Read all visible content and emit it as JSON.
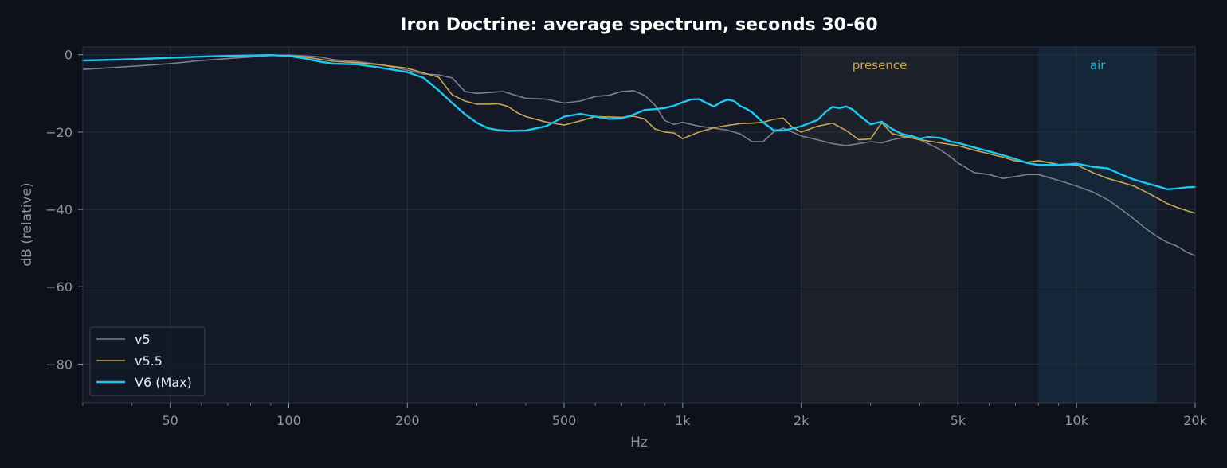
{
  "chart_data": {
    "type": "line",
    "title": "Iron Doctrine: average spectrum, seconds 30-60",
    "xlabel": "Hz",
    "ylabel": "dB (relative)",
    "xscale": "log",
    "xlim": [
      30,
      20000
    ],
    "ylim": [
      -90,
      2
    ],
    "xticks": [
      {
        "value": 50,
        "label": "50"
      },
      {
        "value": 100,
        "label": "100"
      },
      {
        "value": 200,
        "label": "200"
      },
      {
        "value": 500,
        "label": "500"
      },
      {
        "value": 1000,
        "label": "1k"
      },
      {
        "value": 2000,
        "label": "2k"
      },
      {
        "value": 5000,
        "label": "5k"
      },
      {
        "value": 10000,
        "label": "10k"
      },
      {
        "value": 20000,
        "label": "20k"
      }
    ],
    "yticks": [
      {
        "value": 0,
        "label": "0"
      },
      {
        "value": -20,
        "label": "−20"
      },
      {
        "value": -40,
        "label": "−40"
      },
      {
        "value": -60,
        "label": "−60"
      },
      {
        "value": -80,
        "label": "−80"
      }
    ],
    "grid": true,
    "legend_position": "bottom-left",
    "bands": [
      {
        "label": "presence",
        "x0": 2000,
        "x1": 5000,
        "color": "#c9a64f"
      },
      {
        "label": "air",
        "x0": 8000,
        "x1": 16000,
        "color": "#1fb6d9"
      }
    ],
    "series": [
      {
        "name": "v5",
        "color": "#7a8090",
        "width": 1.6,
        "x": [
          30,
          40,
          50,
          60,
          70,
          80,
          90,
          100,
          110,
          120,
          130,
          150,
          170,
          200,
          220,
          240,
          260,
          280,
          300,
          350,
          400,
          450,
          500,
          550,
          600,
          650,
          700,
          750,
          800,
          850,
          900,
          950,
          1000,
          1100,
          1200,
          1300,
          1400,
          1500,
          1600,
          1700,
          1800,
          1900,
          2000,
          2200,
          2400,
          2600,
          2800,
          3000,
          3200,
          3400,
          3600,
          3800,
          4000,
          4200,
          4500,
          4800,
          5000,
          5500,
          6000,
          6500,
          7000,
          7500,
          8000,
          9000,
          10000,
          11000,
          12000,
          13000,
          14000,
          15000,
          16000,
          17000,
          18000,
          19000,
          20000
        ],
        "y": [
          -3.8,
          -3,
          -2.3,
          -1.5,
          -1,
          -0.6,
          -0.2,
          -0.1,
          -0.3,
          -0.6,
          -1.3,
          -1.8,
          -2.5,
          -4,
          -5,
          -5.2,
          -6,
          -9.5,
          -10,
          -9.5,
          -11.3,
          -11.5,
          -12.5,
          -12,
          -10.8,
          -10.5,
          -9.5,
          -9.3,
          -10.5,
          -13,
          -17,
          -18,
          -17.5,
          -18.5,
          -19,
          -19.5,
          -20.5,
          -22.5,
          -22.5,
          -20,
          -19,
          -20,
          -21,
          -22,
          -23,
          -23.5,
          -23,
          -22.5,
          -22.8,
          -22,
          -21.5,
          -21,
          -22,
          -23,
          -24.5,
          -26.5,
          -28,
          -30.5,
          -31,
          -32,
          -31.5,
          -31,
          -31,
          -32.5,
          -34,
          -35.5,
          -37.5,
          -40,
          -42.5,
          -45,
          -47,
          -48.5,
          -49.5,
          -51,
          -52
        ]
      },
      {
        "name": "v5.5",
        "color": "#c9a64f",
        "width": 1.6,
        "x": [
          30,
          40,
          50,
          60,
          70,
          80,
          90,
          100,
          110,
          120,
          130,
          150,
          170,
          200,
          220,
          240,
          260,
          280,
          300,
          320,
          340,
          360,
          380,
          400,
          450,
          500,
          550,
          600,
          650,
          700,
          750,
          800,
          850,
          900,
          950,
          1000,
          1100,
          1200,
          1300,
          1400,
          1500,
          1600,
          1700,
          1800,
          1900,
          2000,
          2200,
          2400,
          2600,
          2800,
          3000,
          3200,
          3400,
          3600,
          3800,
          4000,
          4500,
          5000,
          5500,
          6000,
          6500,
          7000,
          7500,
          8000,
          9000,
          10000,
          11000,
          12000,
          13000,
          14000,
          15000,
          16000,
          17000,
          18000,
          19000,
          20000
        ],
        "y": [
          -1.5,
          -1.2,
          -0.8,
          -0.5,
          -0.3,
          -0.2,
          -0.1,
          -0.2,
          -0.6,
          -1.2,
          -1.7,
          -2.1,
          -2.6,
          -3.5,
          -4.7,
          -5.8,
          -10.4,
          -12,
          -12.8,
          -12.8,
          -12.7,
          -13.4,
          -15,
          -16,
          -17.4,
          -18.2,
          -17.1,
          -16,
          -16.1,
          -16.2,
          -15.9,
          -16.6,
          -19.2,
          -20,
          -20.2,
          -21.7,
          -20,
          -18.9,
          -18.3,
          -17.8,
          -17.7,
          -17.5,
          -16.7,
          -16.4,
          -18.8,
          -20,
          -18.5,
          -17.7,
          -19.6,
          -22,
          -21.8,
          -17.6,
          -20.4,
          -21,
          -21.5,
          -22,
          -22.8,
          -23.5,
          -24.7,
          -25.6,
          -26.5,
          -27.5,
          -27.8,
          -27.4,
          -28.4,
          -28.5,
          -30.5,
          -32,
          -33,
          -34,
          -35.5,
          -37,
          -38.5,
          -39.5,
          -40.3,
          -41
        ]
      },
      {
        "name": "V6 (Max)",
        "color": "#1ec8f0",
        "width": 2.4,
        "x": [
          30,
          40,
          50,
          60,
          70,
          80,
          90,
          100,
          110,
          120,
          130,
          150,
          170,
          200,
          220,
          240,
          260,
          280,
          300,
          320,
          340,
          360,
          400,
          450,
          500,
          550,
          600,
          650,
          700,
          750,
          800,
          850,
          900,
          950,
          1000,
          1050,
          1100,
          1150,
          1200,
          1250,
          1300,
          1350,
          1400,
          1450,
          1500,
          1600,
          1700,
          1800,
          1900,
          2000,
          2200,
          2300,
          2400,
          2500,
          2600,
          2700,
          2800,
          3000,
          3200,
          3400,
          3600,
          3800,
          4000,
          4200,
          4500,
          4800,
          5000,
          5500,
          6000,
          6500,
          7000,
          7500,
          8000,
          9000,
          10000,
          11000,
          12000,
          13000,
          14000,
          15000,
          16000,
          17000,
          18000,
          19000,
          20000
        ],
        "y": [
          -1.5,
          -1.2,
          -0.8,
          -0.5,
          -0.3,
          -0.2,
          -0.1,
          -0.3,
          -1,
          -1.8,
          -2.3,
          -2.5,
          -3.3,
          -4.5,
          -6,
          -9.2,
          -12.5,
          -15.4,
          -17.6,
          -19,
          -19.5,
          -19.7,
          -19.6,
          -18.5,
          -16,
          -15.3,
          -16,
          -16.6,
          -16.5,
          -15.5,
          -14.3,
          -14.1,
          -13.8,
          -13.2,
          -12.3,
          -11.6,
          -11.5,
          -12.5,
          -13.4,
          -12.3,
          -11.6,
          -12,
          -13.3,
          -14,
          -14.9,
          -17.5,
          -19.5,
          -19.6,
          -19.1,
          -18.5,
          -16.9,
          -14.9,
          -13.5,
          -13.8,
          -13.4,
          -14.2,
          -15.6,
          -18,
          -17.3,
          -19.2,
          -20.5,
          -21,
          -21.7,
          -21.3,
          -21.5,
          -22.5,
          -22.8,
          -24,
          -25,
          -26,
          -27,
          -28,
          -28.5,
          -28.5,
          -28.2,
          -29,
          -29.4,
          -31,
          -32.3,
          -33.2,
          -34,
          -34.8,
          -34.6,
          -34.3,
          -34.2
        ]
      }
    ]
  }
}
